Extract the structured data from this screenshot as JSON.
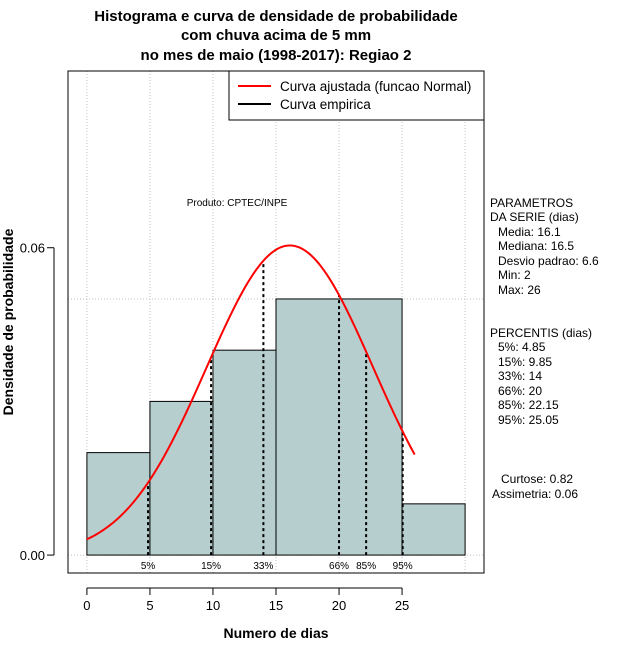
{
  "chart_data": {
    "type": "bar",
    "title_lines": [
      "Histograma e curva de densidade de probabilidade",
      "com chuva acima de 5 mm",
      "no mes de maio (1998-2017): Regiao 2"
    ],
    "xlabel": "Numero de dias",
    "ylabel": "Densidade de probabilidade",
    "xlim": [
      -1.5,
      31.5
    ],
    "ylim": [
      -0.0035,
      0.0945
    ],
    "x_ticks": [
      0,
      5,
      10,
      15,
      20,
      25
    ],
    "x_tick_labels": [
      "0",
      "5",
      "10",
      "15",
      "20",
      "25"
    ],
    "y_ticks": [
      0,
      0.06
    ],
    "y_tick_labels": [
      "0.00",
      "0.06"
    ],
    "grid": true,
    "bins": [
      {
        "from": 0,
        "to": 5,
        "density": 0.02
      },
      {
        "from": 5,
        "to": 10,
        "density": 0.03
      },
      {
        "from": 10,
        "to": 15,
        "density": 0.04
      },
      {
        "from": 15,
        "to": 25,
        "density": 0.05
      },
      {
        "from": 25,
        "to": 30,
        "density": 0.01
      }
    ],
    "curve": {
      "name": "Curva ajustada (funcao Normal)",
      "color": "#ff0000",
      "distribution": "normal",
      "mean": 16.1,
      "sd": 6.6,
      "x_range": [
        0,
        26
      ]
    },
    "percentile_lines": [
      {
        "label": "5%",
        "x": 4.85
      },
      {
        "label": "15%",
        "x": 9.85
      },
      {
        "label": "33%",
        "x": 14
      },
      {
        "label": "66%",
        "x": 20
      },
      {
        "label": "85%",
        "x": 22.15
      },
      {
        "label": "95%",
        "x": 25.05
      }
    ],
    "legend": {
      "placement": "top-right",
      "entries": [
        {
          "label": "Curva ajustada (funcao Normal)",
          "color": "#ff0000"
        },
        {
          "label": "Curva empirica",
          "color": "#000000"
        }
      ]
    },
    "annotation": "Produto: CPTEC/INPE",
    "bar_color": "#b7cece"
  },
  "side_panel": {
    "parametros_lines": [
      "PARAMETROS",
      "DA SERIE (dias)",
      "Media: 16.1",
      "Mediana: 16.5",
      "Desvio padrao: 6.6",
      "Min: 2",
      "Max: 26"
    ],
    "percentis_lines": [
      "PERCENTIS (dias)",
      "5%: 4.85",
      "15%: 9.85",
      "33%: 14",
      "66%: 20",
      "85%: 22.15",
      "95%: 25.05"
    ],
    "stats_lines": [
      "Curtose: 0.82",
      "Assimetria: 0.06"
    ]
  }
}
